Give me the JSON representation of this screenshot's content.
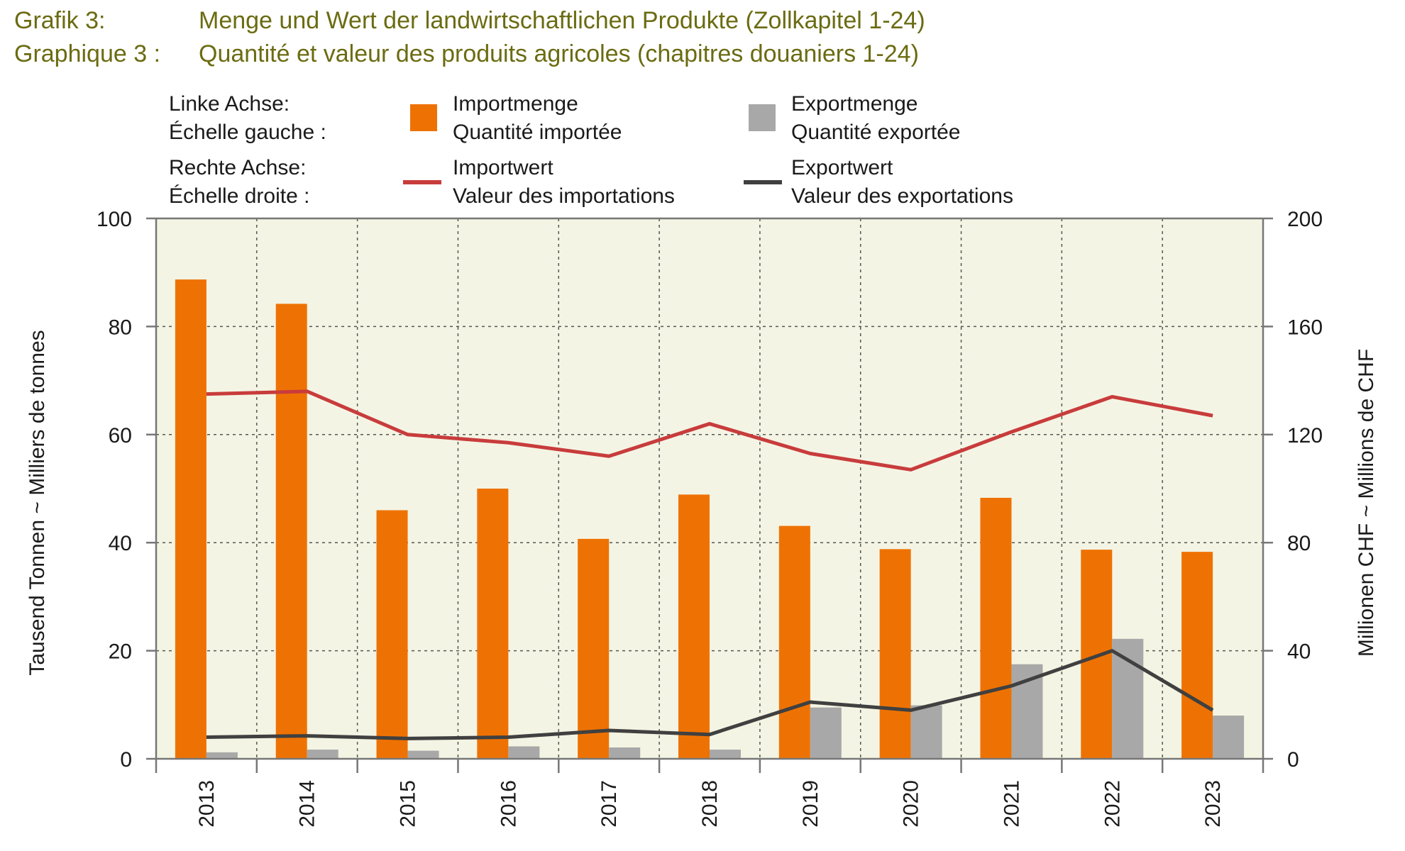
{
  "header": {
    "de_prefix": "Grafik 3:",
    "de_title": "Menge und Wert der landwirtschaftlichen Produkte (Zollkapitel 1-24)",
    "fr_prefix": "Graphique 3 :",
    "fr_title": "Quantité et valeur des produits agricoles (chapitres douaniers 1-24)"
  },
  "legend": {
    "left_axis_de": "Linke Achse:",
    "left_axis_fr": "Échelle gauche :",
    "right_axis_de": "Rechte Achse:",
    "right_axis_fr": "Échelle droite :",
    "import_qty_de": "Importmenge",
    "import_qty_fr": "Quantité importée",
    "export_qty_de": "Exportmenge",
    "export_qty_fr": "Quantité exportée",
    "import_val_de": "Importwert",
    "import_val_fr": "Valeur des importations",
    "export_val_de": "Exportwert",
    "export_val_fr": "Valeur des exportations"
  },
  "colors": {
    "import_bar": "#ee7203",
    "export_bar": "#a8a8a8",
    "import_line": "#c83c3c",
    "export_line": "#404040",
    "plot_bg": "#f4f4e4",
    "header_text": "#6b6b12"
  },
  "chart_data": {
    "type": "bar",
    "x": [
      "2013",
      "2014",
      "2015",
      "2016",
      "2017",
      "2018",
      "2019",
      "2020",
      "2021",
      "2022",
      "2023"
    ],
    "left_axis": {
      "label": "Tausend Tonnen   ~   Milliers de tonnes",
      "ylim": [
        0,
        100
      ],
      "ticks": [
        0,
        20,
        40,
        60,
        80,
        100
      ]
    },
    "right_axis": {
      "label": "Millionen CHF   ~   Millions de CHF",
      "ylim": [
        0,
        200
      ],
      "ticks": [
        0,
        40,
        80,
        120,
        160,
        200
      ]
    },
    "grid": true,
    "legend_position": "top",
    "bars": [
      {
        "name": "Importmenge",
        "axis": "left",
        "values": [
          88.7,
          84.2,
          46.0,
          50.0,
          40.7,
          48.9,
          43.1,
          38.8,
          48.3,
          38.7,
          38.3
        ]
      },
      {
        "name": "Exportmenge",
        "axis": "left",
        "values": [
          1.2,
          1.7,
          1.5,
          2.3,
          2.1,
          1.7,
          9.5,
          9.9,
          17.5,
          22.2,
          8.0
        ]
      }
    ],
    "lines": [
      {
        "name": "Importwert",
        "axis": "right",
        "values": [
          135,
          136,
          120,
          117,
          112,
          124,
          113,
          107,
          121,
          134,
          127
        ]
      },
      {
        "name": "Exportwert",
        "axis": "right",
        "values": [
          8,
          8.5,
          7.5,
          8,
          10.5,
          9,
          21,
          18,
          27,
          40,
          18
        ]
      }
    ]
  }
}
